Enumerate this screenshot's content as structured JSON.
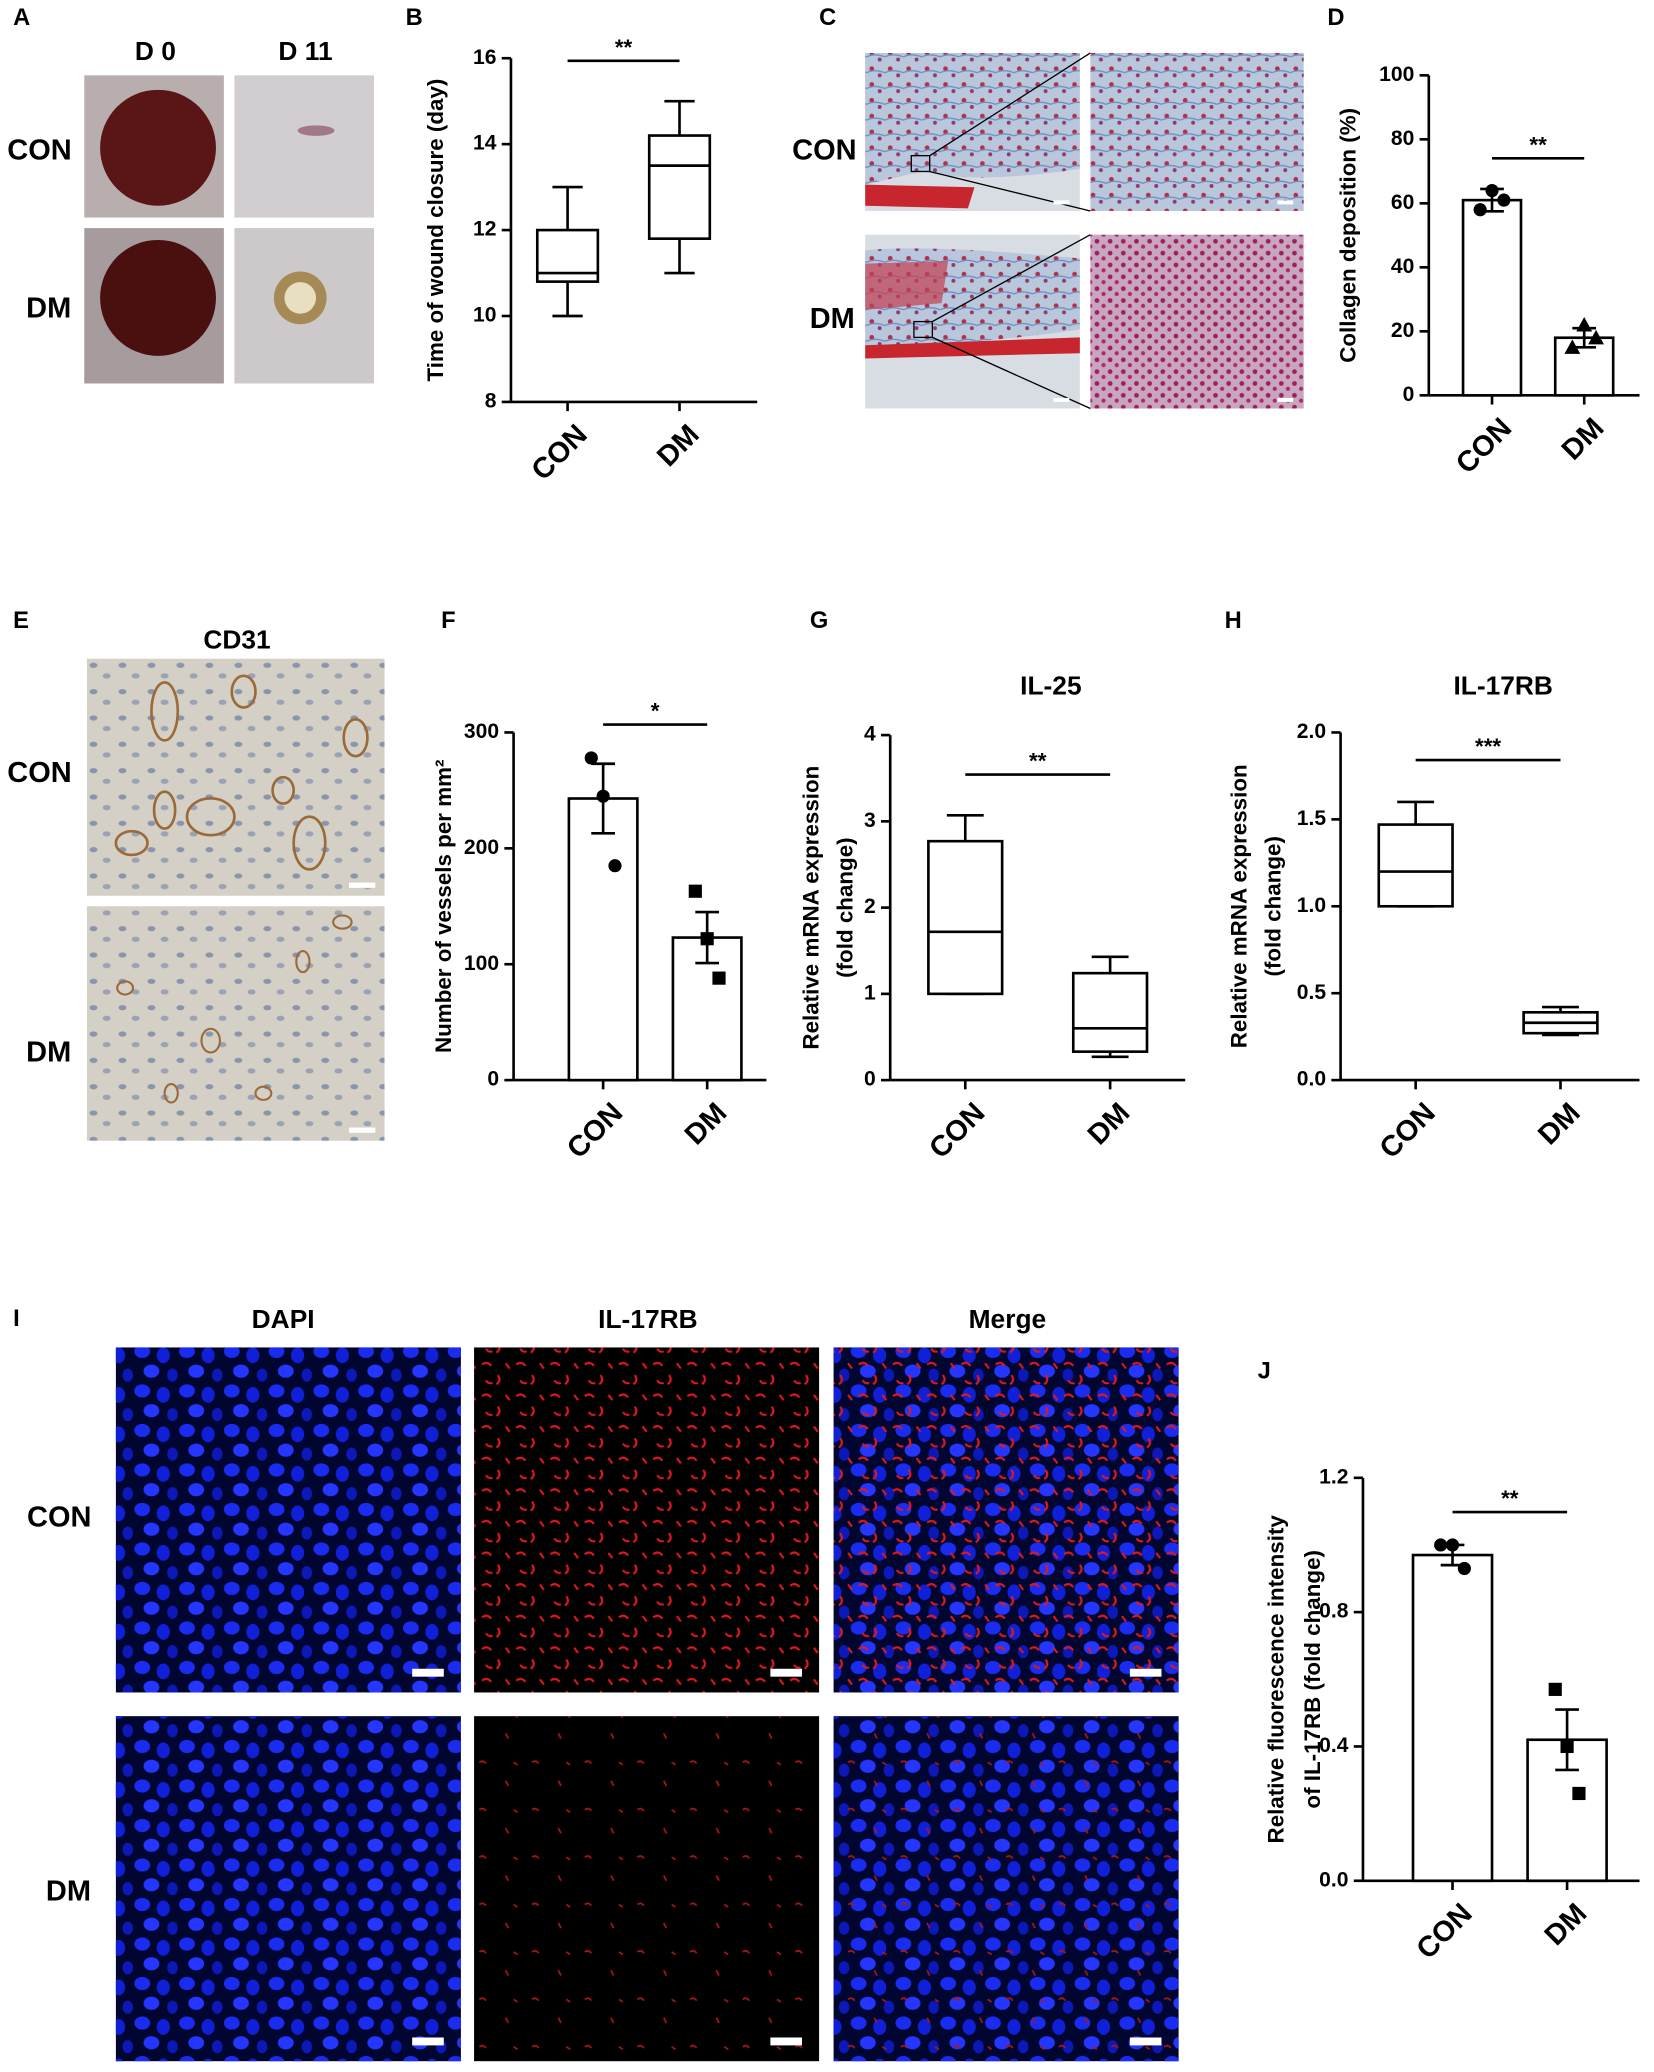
{
  "image_panels": [
    {
      "panel": "A",
      "columns": [
        "D 0",
        "D 11"
      ],
      "rows": [
        "CON",
        "DM"
      ]
    },
    {
      "panel": "C",
      "rows": [
        "CON",
        "DM"
      ]
    },
    {
      "panel": "E",
      "title": "CD31",
      "rows": [
        "CON",
        "DM"
      ]
    },
    {
      "panel": "I",
      "columns": [
        "DAPI",
        "IL-17RB",
        "Merge"
      ],
      "rows": [
        "CON",
        "DM"
      ]
    }
  ],
  "chart_data": [
    {
      "type": "box",
      "panel": "B",
      "ylabel": "Time of wound closure (day)",
      "categories": [
        "CON",
        "DM"
      ],
      "boxes": [
        {
          "min": 10,
          "q1": 10.8,
          "median": 11,
          "q3": 12,
          "max": 13
        },
        {
          "min": 11,
          "q1": 11.8,
          "median": 13.5,
          "q3": 14.2,
          "max": 15
        }
      ],
      "ylim": [
        8,
        16
      ],
      "yticks": [
        8,
        10,
        12,
        14,
        16
      ],
      "significance": "**",
      "color": "#000000"
    },
    {
      "type": "bar",
      "panel": "D",
      "ylabel": "Collagen deposition (%)",
      "categories": [
        "CON",
        "DM"
      ],
      "values": [
        61,
        18
      ],
      "errors": [
        3.5,
        3
      ],
      "points": [
        [
          58,
          64,
          61
        ],
        [
          15,
          22,
          18
        ]
      ],
      "markers": [
        "circle",
        "triangle"
      ],
      "ylim": [
        0,
        100
      ],
      "yticks": [
        0,
        20,
        40,
        60,
        80,
        100
      ],
      "significance": "**",
      "color": "#000000"
    },
    {
      "type": "bar",
      "panel": "F",
      "ylabel": "Number of vessels per mm²",
      "categories": [
        "CON",
        "DM"
      ],
      "values": [
        243,
        123
      ],
      "errors": [
        30,
        22
      ],
      "points": [
        [
          278,
          245,
          185
        ],
        [
          163,
          122,
          88
        ]
      ],
      "markers": [
        "circle",
        "square"
      ],
      "ylim": [
        0,
        300
      ],
      "yticks": [
        0,
        100,
        200,
        300
      ],
      "significance": "*",
      "color": "#000000"
    },
    {
      "type": "box",
      "panel": "G",
      "title": "IL-25",
      "ylabel": [
        "Relative mRNA expression",
        "(fold change)"
      ],
      "categories": [
        "CON",
        "DM"
      ],
      "boxes": [
        {
          "min": 1.0,
          "q1": 1.0,
          "median": 1.72,
          "q3": 2.77,
          "max": 3.07
        },
        {
          "min": 0.27,
          "q1": 0.33,
          "median": 0.6,
          "q3": 1.24,
          "max": 1.43
        }
      ],
      "ylim": [
        0,
        4
      ],
      "yticks": [
        0,
        1,
        2,
        3,
        4
      ],
      "significance": "**",
      "color": "#000000"
    },
    {
      "type": "box",
      "panel": "H",
      "title": "IL-17RB",
      "ylabel": [
        "Relative mRNA expression",
        "(fold change)"
      ],
      "categories": [
        "CON",
        "DM"
      ],
      "boxes": [
        {
          "min": 1.0,
          "q1": 1.0,
          "median": 1.2,
          "q3": 1.47,
          "max": 1.6
        },
        {
          "min": 0.26,
          "q1": 0.27,
          "median": 0.33,
          "q3": 0.39,
          "max": 0.42
        }
      ],
      "ylim": [
        0,
        2
      ],
      "yticks": [
        {
          "value": 0,
          "label": "0.0"
        },
        0.5,
        {
          "value": 1,
          "label": "1.0"
        },
        1.5,
        {
          "value": 2,
          "label": "2.0"
        }
      ],
      "significance": "***",
      "color": "#000000"
    },
    {
      "type": "bar",
      "panel": "J",
      "ylabel": [
        "Relative fluorescence intensity",
        "of IL-17RB (fold change)"
      ],
      "categories": [
        "CON",
        "DM"
      ],
      "values": [
        0.97,
        0.42
      ],
      "errors": [
        0.03,
        0.09
      ],
      "points": [
        [
          1.0,
          1.0,
          0.93
        ],
        [
          0.57,
          0.4,
          0.26
        ]
      ],
      "markers": [
        "circle",
        "square"
      ],
      "ylim": [
        0,
        1.2
      ],
      "yticks": [
        {
          "value": 0,
          "label": "0.0"
        },
        0.4,
        0.8,
        1.2
      ],
      "significance": "**",
      "color": "#000000"
    }
  ]
}
